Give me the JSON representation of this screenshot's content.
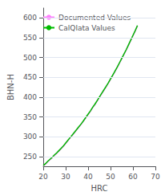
{
  "chart_data": {
    "type": "line",
    "xlabel": "HRC",
    "ylabel": "BHN-H",
    "x": [
      20,
      21,
      22,
      23,
      24,
      25,
      26,
      27,
      28,
      29,
      30,
      31,
      32,
      33,
      34,
      35,
      36,
      37,
      38,
      39,
      40,
      41,
      42,
      43,
      44,
      45,
      46,
      47,
      48,
      49,
      50,
      51,
      52,
      53,
      54,
      55,
      56,
      57,
      58,
      59,
      60,
      61,
      62
    ],
    "series": [
      {
        "name": "Documented Values",
        "color": "#ff80ff",
        "values": [
          226,
          231,
          237,
          242,
          247,
          253,
          258,
          264,
          270,
          276,
          283,
          290,
          297,
          304,
          311,
          318,
          325,
          332,
          340,
          348,
          356,
          364,
          373,
          381,
          390,
          399,
          408,
          417,
          426,
          435,
          445,
          455,
          465,
          475,
          486,
          497,
          508,
          519,
          531,
          543,
          555,
          567,
          580
        ]
      },
      {
        "name": "CalQlata Values",
        "color": "#00bb00",
        "values": [
          227,
          232,
          238,
          243,
          248,
          254,
          259,
          265,
          271,
          277,
          284,
          291,
          298,
          305,
          312,
          319,
          326,
          333,
          341,
          349,
          357,
          365,
          374,
          382,
          391,
          400,
          409,
          418,
          427,
          436,
          446,
          456,
          466,
          476,
          487,
          498,
          509,
          520,
          532,
          544,
          556,
          568,
          581
        ]
      }
    ],
    "xlim": [
      20,
      70
    ],
    "ylim": [
      225,
      625
    ],
    "xticks": [
      20,
      30,
      40,
      50,
      60,
      70
    ],
    "yticks": [
      250,
      300,
      350,
      400,
      450,
      500,
      550,
      600
    ],
    "grid": true,
    "legend": "upper left"
  }
}
